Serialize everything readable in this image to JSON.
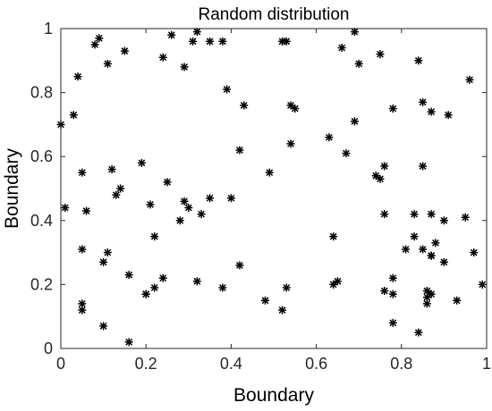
{
  "chart_data": {
    "type": "scatter",
    "title": "Random distribution",
    "xlabel": "Boundary",
    "ylabel": "Boundary",
    "xlim": [
      0,
      1
    ],
    "ylim": [
      0,
      1
    ],
    "xticks": [
      0,
      0.2,
      0.4,
      0.6,
      0.8,
      1
    ],
    "yticks": [
      0,
      0.2,
      0.4,
      0.6,
      0.8,
      1
    ],
    "xtick_labels": [
      "0",
      "0.2",
      "0.4",
      "0.6",
      "0.8",
      "1"
    ],
    "ytick_labels": [
      "0",
      "0.2",
      "0.4",
      "0.6",
      "0.8",
      "1"
    ],
    "grid": false,
    "marker": "asterisk",
    "marker_color": "#000000",
    "points": [
      [
        0.08,
        0.95
      ],
      [
        0.09,
        0.97
      ],
      [
        0.11,
        0.89
      ],
      [
        0.15,
        0.93
      ],
      [
        0.24,
        0.91
      ],
      [
        0.26,
        0.98
      ],
      [
        0.29,
        0.88
      ],
      [
        0.31,
        0.96
      ],
      [
        0.32,
        0.99
      ],
      [
        0.35,
        0.96
      ],
      [
        0.38,
        0.96
      ],
      [
        0.52,
        0.96
      ],
      [
        0.53,
        0.96
      ],
      [
        0.66,
        0.94
      ],
      [
        0.69,
        0.99
      ],
      [
        0.7,
        0.89
      ],
      [
        0.75,
        0.92
      ],
      [
        0.84,
        0.9
      ],
      [
        0.96,
        0.84
      ],
      [
        0.0,
        0.7
      ],
      [
        0.03,
        0.73
      ],
      [
        0.04,
        0.85
      ],
      [
        0.39,
        0.81
      ],
      [
        0.43,
        0.76
      ],
      [
        0.54,
        0.76
      ],
      [
        0.55,
        0.75
      ],
      [
        0.69,
        0.71
      ],
      [
        0.78,
        0.75
      ],
      [
        0.85,
        0.77
      ],
      [
        0.87,
        0.74
      ],
      [
        0.91,
        0.73
      ],
      [
        0.42,
        0.62
      ],
      [
        0.54,
        0.64
      ],
      [
        0.63,
        0.66
      ],
      [
        0.67,
        0.61
      ],
      [
        0.05,
        0.55
      ],
      [
        0.12,
        0.56
      ],
      [
        0.19,
        0.58
      ],
      [
        0.49,
        0.55
      ],
      [
        0.74,
        0.54
      ],
      [
        0.75,
        0.53
      ],
      [
        0.76,
        0.57
      ],
      [
        0.85,
        0.57
      ],
      [
        0.01,
        0.44
      ],
      [
        0.06,
        0.43
      ],
      [
        0.13,
        0.48
      ],
      [
        0.14,
        0.5
      ],
      [
        0.21,
        0.45
      ],
      [
        0.25,
        0.52
      ],
      [
        0.28,
        0.4
      ],
      [
        0.29,
        0.46
      ],
      [
        0.3,
        0.44
      ],
      [
        0.33,
        0.42
      ],
      [
        0.35,
        0.47
      ],
      [
        0.4,
        0.47
      ],
      [
        0.76,
        0.42
      ],
      [
        0.83,
        0.42
      ],
      [
        0.87,
        0.42
      ],
      [
        0.9,
        0.4
      ],
      [
        0.95,
        0.41
      ],
      [
        0.05,
        0.31
      ],
      [
        0.1,
        0.27
      ],
      [
        0.11,
        0.3
      ],
      [
        0.22,
        0.35
      ],
      [
        0.42,
        0.26
      ],
      [
        0.64,
        0.35
      ],
      [
        0.81,
        0.31
      ],
      [
        0.83,
        0.35
      ],
      [
        0.85,
        0.31
      ],
      [
        0.87,
        0.29
      ],
      [
        0.87,
        0.29
      ],
      [
        0.88,
        0.33
      ],
      [
        0.9,
        0.27
      ],
      [
        0.97,
        0.3
      ],
      [
        0.05,
        0.14
      ],
      [
        0.05,
        0.12
      ],
      [
        0.16,
        0.23
      ],
      [
        0.2,
        0.17
      ],
      [
        0.2,
        0.17
      ],
      [
        0.22,
        0.19
      ],
      [
        0.24,
        0.22
      ],
      [
        0.32,
        0.21
      ],
      [
        0.38,
        0.19
      ],
      [
        0.48,
        0.15
      ],
      [
        0.52,
        0.12
      ],
      [
        0.53,
        0.19
      ],
      [
        0.64,
        0.2
      ],
      [
        0.65,
        0.21
      ],
      [
        0.76,
        0.18
      ],
      [
        0.78,
        0.22
      ],
      [
        0.78,
        0.17
      ],
      [
        0.86,
        0.18
      ],
      [
        0.86,
        0.16
      ],
      [
        0.86,
        0.14
      ],
      [
        0.87,
        0.17
      ],
      [
        0.93,
        0.15
      ],
      [
        0.99,
        0.2
      ],
      [
        0.1,
        0.07
      ],
      [
        0.16,
        0.02
      ],
      [
        0.78,
        0.08
      ],
      [
        0.84,
        0.05
      ]
    ]
  }
}
